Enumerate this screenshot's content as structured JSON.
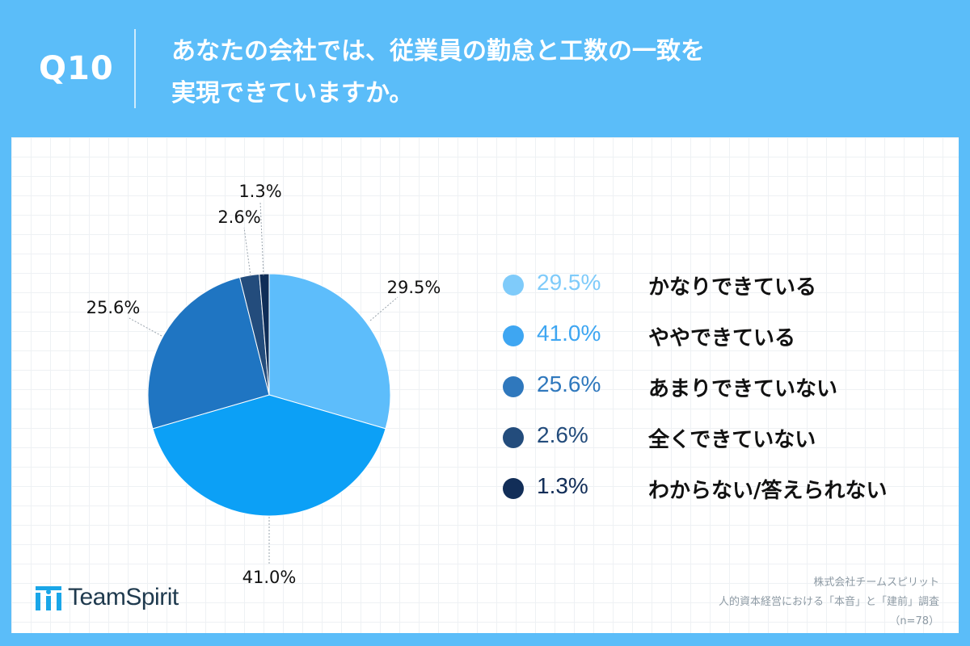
{
  "header": {
    "qnum": "Q10",
    "question_line1": "あなたの会社では、従業員の勤怠と工数の一致を",
    "question_line2": "実現できていますか。"
  },
  "chart_data": {
    "type": "pie",
    "categories": [
      "かなりできている",
      "ややできている",
      "あまりできていない",
      "全くできていない",
      "わからない/答えられない"
    ],
    "values": [
      29.5,
      41.0,
      25.6,
      2.6,
      1.3
    ],
    "value_labels": [
      "29.5%",
      "41.0%",
      "25.6%",
      "2.6%",
      "1.3%"
    ],
    "colors": [
      "#5dbdfb",
      "#0ca0f6",
      "#1f75c2",
      "#234c7c",
      "#0f2d57"
    ],
    "legend_position": "right"
  },
  "legend": {
    "items": [
      {
        "pct": "29.5%",
        "label": "かなりできている",
        "color": "#7fcbfa"
      },
      {
        "pct": "41.0%",
        "label": "ややできている",
        "color": "#3ea6f2"
      },
      {
        "pct": "25.6%",
        "label": "あまりできていない",
        "color": "#2f78bd"
      },
      {
        "pct": "2.6%",
        "label": "全くできていない",
        "color": "#234c7c"
      },
      {
        "pct": "1.3%",
        "label": "わからない/答えられない",
        "color": "#122e58"
      }
    ]
  },
  "brand": {
    "name": "TeamSpirit",
    "icon": "teamspirit-logo-icon"
  },
  "source": {
    "line1": "株式会社チームスピリット",
    "line2": "人的資本経営における「本音」と「建前」調査",
    "line3": "（n=78）"
  }
}
